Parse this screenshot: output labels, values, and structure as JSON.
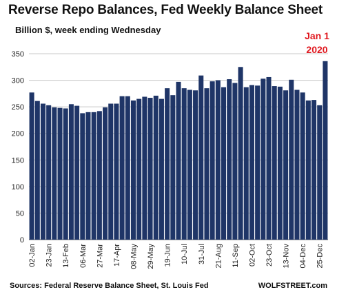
{
  "chart_data": {
    "type": "bar",
    "title": "Reverse Repo Balances, Fed Weekly Balance Sheet",
    "subtitle": "Billion $, week ending Wednesday",
    "ylim": [
      0,
      350
    ],
    "yticks": [
      0,
      50,
      100,
      150,
      200,
      250,
      300,
      350
    ],
    "grid": true,
    "bar_color": "#1f3567",
    "annotation": {
      "line1": "Jan 1",
      "line2": "2020",
      "color": "#e0181f"
    },
    "categories": [
      "02-Jan",
      "09-Jan",
      "16-Jan",
      "23-Jan",
      "30-Jan",
      "06-Feb",
      "13-Feb",
      "20-Feb",
      "27-Feb",
      "06-Mar",
      "13-Mar",
      "20-Mar",
      "27-Mar",
      "03-Apr",
      "10-Apr",
      "17-Apr",
      "24-Apr",
      "01-May",
      "08-May",
      "15-May",
      "22-May",
      "29-May",
      "05-Jun",
      "12-Jun",
      "19-Jun",
      "26-Jun",
      "03-Jul",
      "10-Jul",
      "17-Jul",
      "24-Jul",
      "31-Jul",
      "07-Aug",
      "14-Aug",
      "21-Aug",
      "28-Aug",
      "04-Sep",
      "11-Sep",
      "18-Sep",
      "25-Sep",
      "02-Oct",
      "09-Oct",
      "16-Oct",
      "23-Oct",
      "30-Oct",
      "06-Nov",
      "13-Nov",
      "20-Nov",
      "27-Nov",
      "04-Dec",
      "11-Dec",
      "18-Dec",
      "25-Dec",
      "01-Jan"
    ],
    "values": [
      277,
      261,
      256,
      253,
      249,
      248,
      247,
      255,
      252,
      238,
      240,
      240,
      242,
      249,
      256,
      256,
      270,
      270,
      262,
      265,
      269,
      267,
      271,
      265,
      285,
      272,
      297,
      285,
      282,
      281,
      309,
      285,
      298,
      300,
      287,
      302,
      295,
      325,
      287,
      291,
      290,
      303,
      306,
      289,
      288,
      281,
      301,
      282,
      277,
      262,
      263,
      253,
      336
    ],
    "xtick_labels": [
      "02-Jan",
      "23-Jan",
      "13-Feb",
      "06-Mar",
      "27-Mar",
      "17-Apr",
      "08-May",
      "29-May",
      "19-Jun",
      "10-Jul",
      "31-Jul",
      "21-Aug",
      "11-Sep",
      "02-Oct",
      "23-Oct",
      "13-Nov",
      "04-Dec",
      "25-Dec"
    ]
  },
  "footer": {
    "source": "Sources: Federal Reserve Balance Sheet, St. Louis Fed",
    "credit": "WOLFSTREET.com"
  }
}
